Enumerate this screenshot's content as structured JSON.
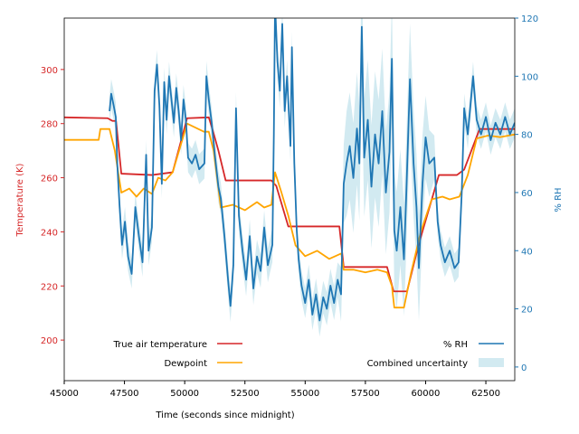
{
  "chart_data": {
    "type": "line",
    "xlabel": "Time (seconds since midnight)",
    "ylabel_left": "Temperature (K)",
    "ylabel_right": "% RH",
    "xlim": [
      45000,
      63700
    ],
    "ylim_left": [
      185,
      319
    ],
    "ylim_right": [
      -4.7,
      120
    ],
    "x_ticks": [
      45000,
      47500,
      50000,
      52500,
      55000,
      57500,
      60000,
      62500
    ],
    "y_ticks_left": [
      200,
      220,
      240,
      260,
      280,
      300
    ],
    "y_ticks_right": [
      0,
      20,
      40,
      60,
      80,
      100,
      120
    ],
    "grid": false,
    "colors": {
      "temperature": "#d62728",
      "dewpoint": "#ffa500",
      "rh": "#1f77b4",
      "uncertainty": "#add8e6",
      "left_axis": "#d62728",
      "right_axis": "#1f77b4"
    },
    "legend_left": {
      "placement": "lower-left",
      "entries": [
        "True air temperature",
        "Dewpoint"
      ]
    },
    "legend_right": {
      "placement": "lower-right",
      "entries": [
        "% RH",
        "Combined uncertainty"
      ]
    },
    "series": [
      {
        "name": "True air temperature",
        "axis": "left",
        "x": [
          45000,
          46800,
          47000,
          47150,
          47370,
          48640,
          49500,
          50100,
          51000,
          51150,
          51400,
          51700,
          53600,
          53800,
          54300,
          54600,
          56420,
          56600,
          58400,
          58670,
          59230,
          59700,
          60550,
          61300,
          61600,
          62240,
          63700
        ],
        "y": [
          282.3,
          282,
          281,
          281,
          261.5,
          261,
          262,
          282,
          282.3,
          278,
          270,
          259,
          259,
          257,
          242,
          242,
          242,
          227,
          227,
          218,
          218,
          235,
          261,
          261,
          263,
          278,
          278
        ]
      },
      {
        "name": "Dewpoint",
        "axis": "left",
        "x": [
          45000,
          46430,
          46500,
          46880,
          47100,
          47370,
          47700,
          48000,
          48300,
          48640,
          48900,
          49200,
          49500,
          50100,
          50800,
          51000,
          51200,
          51500,
          52000,
          52500,
          53000,
          53300,
          53600,
          53750,
          54000,
          54300,
          54600,
          55000,
          55500,
          56000,
          56500,
          56600,
          57000,
          57500,
          58000,
          58400,
          58600,
          58700,
          59100,
          59400,
          59800,
          60250,
          60700,
          61000,
          61400,
          61750,
          62120,
          62600,
          63100,
          63700
        ],
        "y": [
          274,
          274,
          278,
          278,
          270,
          254.5,
          256,
          253,
          256,
          254,
          260,
          259,
          262,
          280,
          277,
          277,
          270,
          249,
          250,
          248,
          251,
          249,
          250,
          262,
          255,
          246,
          235,
          231,
          233,
          230,
          232,
          226,
          226,
          225,
          226,
          225,
          220,
          212,
          212,
          225,
          240,
          252,
          253,
          252,
          253,
          261,
          274.5,
          275.6,
          275,
          276
        ]
      },
      {
        "name": "% RH",
        "axis": "right",
        "x": [
          46880,
          46950,
          47050,
          47140,
          47200,
          47300,
          47400,
          47520,
          47650,
          47800,
          47950,
          48100,
          48250,
          48400,
          48500,
          48640,
          48750,
          48850,
          48950,
          49050,
          49150,
          49250,
          49350,
          49450,
          49550,
          49650,
          49750,
          49850,
          49950,
          50050,
          50140,
          50300,
          50450,
          50600,
          50820,
          50900,
          51000,
          51120,
          51250,
          51400,
          51500,
          51650,
          51800,
          51900,
          52020,
          52130,
          52250,
          52400,
          52550,
          52700,
          52850,
          53000,
          53150,
          53300,
          53450,
          53640,
          53700,
          53750,
          53850,
          53950,
          54050,
          54150,
          54250,
          54390,
          54450,
          54550,
          54650,
          54730,
          54850,
          55000,
          55150,
          55300,
          55450,
          55600,
          55750,
          55900,
          56050,
          56200,
          56350,
          56490,
          56600,
          56720,
          56850,
          57000,
          57150,
          57250,
          57350,
          57450,
          57600,
          57750,
          57900,
          58050,
          58200,
          58350,
          58500,
          58600,
          58700,
          58800,
          58950,
          59100,
          59200,
          59350,
          59500,
          59620,
          59720,
          59870,
          60000,
          60150,
          60360,
          60500,
          60620,
          60800,
          61000,
          61200,
          61370,
          61500,
          61600,
          61750,
          61970,
          62120,
          62300,
          62500,
          62700,
          62900,
          63100,
          63300,
          63500,
          63700
        ],
        "y": [
          88,
          94,
          90,
          86,
          70,
          55,
          42,
          50,
          38,
          32,
          55,
          45,
          36,
          73,
          40,
          48,
          95,
          104,
          90,
          63,
          98,
          85,
          100,
          92,
          84,
          96,
          88,
          78,
          92,
          85,
          72,
          70,
          73,
          68,
          70,
          100,
          92,
          84,
          73,
          62,
          58,
          45,
          30,
          21,
          35,
          89,
          52,
          40,
          30,
          45,
          27,
          38,
          33,
          48,
          35,
          42,
          80,
          125,
          105,
          95,
          118,
          88,
          100,
          76,
          110,
          70,
          47,
          37,
          28,
          22,
          30,
          18,
          25,
          16,
          24,
          20,
          28,
          22,
          30,
          25,
          63,
          70,
          76,
          65,
          82,
          70,
          117,
          72,
          85,
          62,
          80,
          70,
          88,
          60,
          74,
          106,
          47,
          40,
          55,
          37,
          60,
          99,
          70,
          55,
          34,
          63,
          79,
          70,
          72,
          50,
          42,
          36,
          40,
          34,
          36,
          60,
          89,
          80,
          100,
          85,
          80,
          86,
          78,
          84,
          80,
          86,
          80,
          84
        ]
      },
      {
        "name": "Combined uncertainty",
        "axis": "right",
        "type": "band",
        "note_kind": "plus_minus",
        "x": [
          46880,
          50000,
          54000,
          54730,
          56400,
          56720,
          58000,
          59800,
          60500,
          62000,
          63700
        ],
        "half_width": [
          5,
          5,
          6,
          5,
          6,
          18,
          22,
          18,
          5,
          5,
          5
        ]
      }
    ]
  }
}
